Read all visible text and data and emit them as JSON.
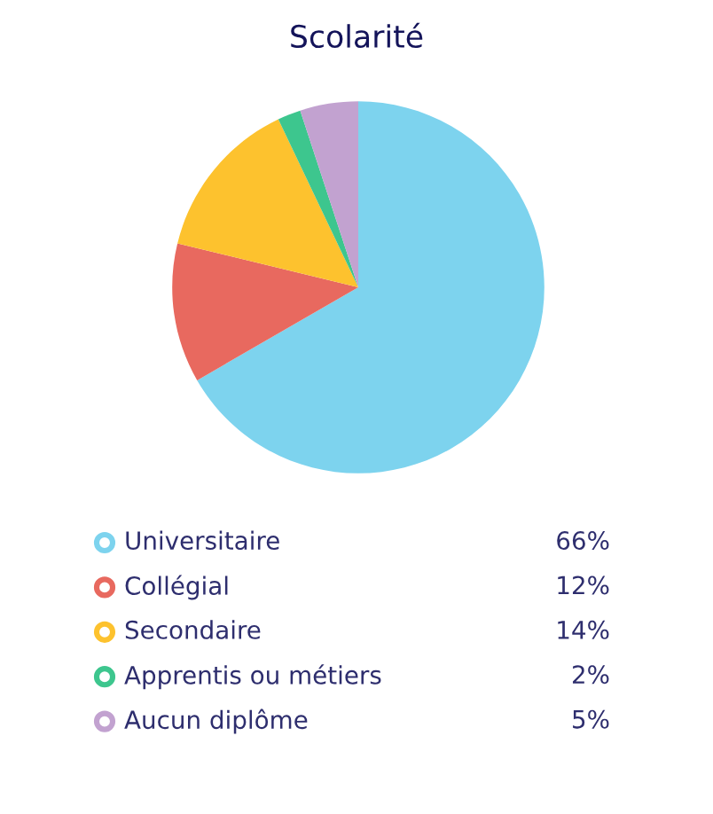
{
  "chart_data": {
    "type": "pie",
    "title": "Scolarité",
    "categories": [
      "Universitaire",
      "Collégial",
      "Secondaire",
      "Apprentis ou métiers",
      "Aucun diplôme"
    ],
    "values": [
      66,
      12,
      14,
      2,
      5
    ],
    "value_labels": [
      "66%",
      "12%",
      "14%",
      "2%",
      "5%"
    ],
    "colors": [
      "#7dd3ee",
      "#e8695f",
      "#fdc22e",
      "#3dc68e",
      "#c2a2d0"
    ],
    "legend": "bottom"
  }
}
